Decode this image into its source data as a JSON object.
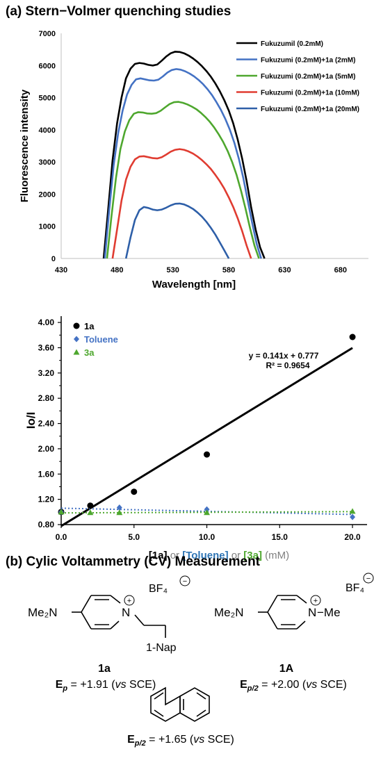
{
  "section_a_title": "(a) Stern−Volmer quenching studies",
  "section_b_title": "(b) Cylic Voltammetry (CV) Measurement",
  "chart_data": [
    {
      "type": "line",
      "xlabel": "Wavelength [nm]",
      "ylabel": "Fluorescence intensity",
      "xlim": [
        430,
        705
      ],
      "ylim": [
        0,
        7000
      ],
      "x_ticks": [
        430,
        480,
        530,
        580,
        630,
        680
      ],
      "y_ticks": [
        0,
        1000,
        2000,
        3000,
        4000,
        5000,
        6000,
        7000
      ],
      "legend_position": "top-right",
      "series": [
        {
          "name": "Fukuzumil (0.2mM)",
          "color": "#000000",
          "x": [
            468,
            472,
            476,
            480,
            484,
            488,
            492,
            496,
            500,
            504,
            508,
            512,
            516,
            520,
            524,
            528,
            532,
            536,
            540,
            544,
            548,
            552,
            556,
            560,
            564,
            568,
            572,
            576,
            580,
            584,
            588,
            592,
            596,
            600,
            604,
            608,
            612
          ],
          "y": [
            0,
            1500,
            3050,
            4200,
            5000,
            5600,
            5900,
            6050,
            6080,
            6060,
            6020,
            6000,
            6030,
            6150,
            6280,
            6380,
            6430,
            6420,
            6380,
            6310,
            6220,
            6110,
            5980,
            5830,
            5650,
            5440,
            5200,
            4920,
            4600,
            4200,
            3700,
            3100,
            2400,
            1600,
            900,
            350,
            0
          ]
        },
        {
          "name": "Fukuzumi (0.2mM)+1a (2mM)",
          "color": "#4472C4",
          "x": [
            469,
            473,
            477,
            481,
            485,
            489,
            493,
            497,
            501,
            505,
            509,
            513,
            517,
            521,
            525,
            529,
            533,
            537,
            541,
            545,
            549,
            553,
            557,
            561,
            565,
            569,
            573,
            577,
            581,
            585,
            589,
            593,
            597,
            601,
            605,
            609
          ],
          "y": [
            0,
            1500,
            2900,
            3900,
            4600,
            5100,
            5400,
            5570,
            5600,
            5570,
            5540,
            5530,
            5560,
            5660,
            5780,
            5860,
            5890,
            5870,
            5820,
            5750,
            5660,
            5550,
            5420,
            5260,
            5080,
            4860,
            4620,
            4330,
            4000,
            3600,
            3100,
            2500,
            1800,
            1100,
            450,
            0
          ]
        },
        {
          "name": "Fukuzumi (0.2mM)+1a (5mM)",
          "color": "#4EA72E",
          "x": [
            471,
            475,
            479,
            483,
            487,
            491,
            495,
            499,
            503,
            507,
            511,
            515,
            519,
            523,
            527,
            531,
            535,
            539,
            543,
            547,
            551,
            555,
            559,
            563,
            567,
            571,
            575,
            579,
            583,
            587,
            591,
            595,
            599,
            603,
            607
          ],
          "y": [
            0,
            1300,
            2500,
            3400,
            3950,
            4300,
            4500,
            4550,
            4540,
            4510,
            4500,
            4520,
            4590,
            4700,
            4800,
            4860,
            4870,
            4840,
            4790,
            4720,
            4640,
            4530,
            4400,
            4250,
            4070,
            3860,
            3620,
            3340,
            3000,
            2600,
            2100,
            1550,
            950,
            400,
            0
          ]
        },
        {
          "name": "Fukuzumi (0.2mM)+1a (10mM)",
          "color": "#E03C31",
          "x": [
            476,
            480,
            484,
            488,
            492,
            496,
            500,
            504,
            508,
            512,
            516,
            520,
            524,
            528,
            532,
            536,
            540,
            544,
            548,
            552,
            556,
            560,
            564,
            568,
            572,
            576,
            580,
            584,
            588,
            592,
            596,
            600
          ],
          "y": [
            0,
            900,
            1800,
            2450,
            2850,
            3080,
            3170,
            3180,
            3150,
            3120,
            3110,
            3150,
            3230,
            3320,
            3380,
            3400,
            3380,
            3330,
            3260,
            3170,
            3060,
            2930,
            2780,
            2600,
            2400,
            2170,
            1900,
            1600,
            1250,
            850,
            400,
            0
          ]
        },
        {
          "name": "Fukuzumi (0.2mM)+1a (20mM)",
          "color": "#2E5FA8",
          "x": [
            488,
            492,
            496,
            500,
            504,
            508,
            512,
            516,
            520,
            524,
            528,
            532,
            536,
            540,
            544,
            548,
            552,
            556,
            560,
            564,
            568,
            572,
            576,
            580
          ],
          "y": [
            0,
            650,
            1200,
            1500,
            1600,
            1570,
            1520,
            1500,
            1520,
            1580,
            1650,
            1700,
            1710,
            1680,
            1620,
            1540,
            1430,
            1300,
            1140,
            950,
            740,
            500,
            250,
            0
          ]
        }
      ]
    },
    {
      "type": "scatter",
      "xlabel_parts": [
        "[1a]",
        " or ",
        "[Toluene]",
        " or ",
        "[3a]",
        " (mM)"
      ],
      "ylabel": "Io/I",
      "xlim": [
        0,
        21
      ],
      "ylim": [
        0.8,
        4.1
      ],
      "x_ticks": [
        "0.0",
        "5.0",
        "10.0",
        "15.0",
        "20.0"
      ],
      "y_ticks": [
        "0.80",
        "1.20",
        "1.60",
        "2.00",
        "2.40",
        "2.80",
        "3.20",
        "3.60",
        "4.00"
      ],
      "legend_position": "top-left",
      "series": [
        {
          "name": "1a",
          "color": "#000000",
          "marker": "circle",
          "x": [
            0,
            2,
            5,
            10,
            20
          ],
          "y": [
            1.0,
            1.1,
            1.32,
            1.91,
            3.77
          ]
        },
        {
          "name": "Toluene",
          "color": "#4472C4",
          "marker": "diamond",
          "x": [
            0,
            4,
            10,
            20
          ],
          "y": [
            1.0,
            1.07,
            1.04,
            0.92
          ]
        },
        {
          "name": "3a",
          "color": "#4EA72E",
          "marker": "triangle",
          "x": [
            0,
            2,
            4,
            10,
            20
          ],
          "y": [
            1.0,
            0.99,
            0.99,
            0.99,
            1.01
          ]
        }
      ],
      "fit_line": {
        "slope": 0.141,
        "intercept": 0.777
      },
      "equation": "y = 0.141x + 0.777",
      "r_squared": "R² = 0.9654"
    }
  ],
  "chem": {
    "mol1": {
      "me2n": "Me₂N",
      "n": "N",
      "plus": "+",
      "bf4": "BF₄",
      "minus": "−",
      "sub": "1-Nap",
      "label": "1a",
      "potential_prefix": "E",
      "potential_sub": "p",
      "potential_value": " = +1.91 (",
      "vs": "vs",
      "sce": " SCE)"
    },
    "mol2": {
      "me2n": "Me₂N",
      "n": "N",
      "plus": "+",
      "bf4": "BF₄",
      "minus": "−",
      "me": "−Me",
      "label": "1A",
      "potential_prefix": "E",
      "potential_sub": "p/2",
      "potential_value": " = +2.00 (",
      "vs": "vs",
      "sce": " SCE)"
    },
    "mol3": {
      "potential_prefix": "E",
      "potential_sub": "p/2",
      "potential_value": " = +1.65 (",
      "vs": "vs",
      "sce": " SCE)"
    }
  }
}
